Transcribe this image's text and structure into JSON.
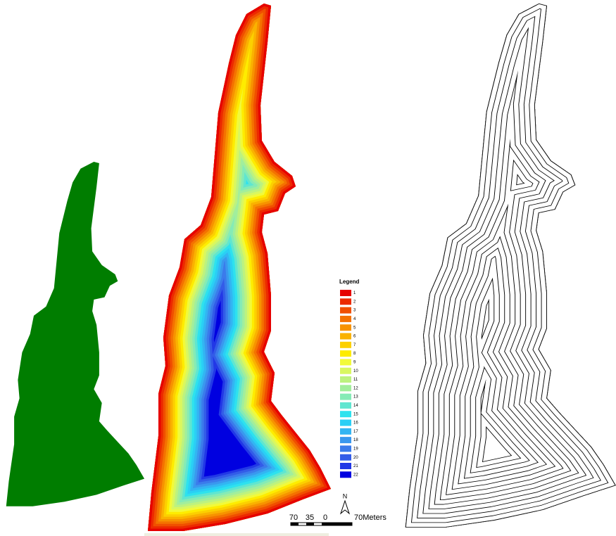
{
  "legend": {
    "title": "Legend",
    "items": [
      {
        "label": "1",
        "color": "#e60000"
      },
      {
        "label": "2",
        "color": "#ec2a00"
      },
      {
        "label": "3",
        "color": "#f04f00"
      },
      {
        "label": "4",
        "color": "#f47200"
      },
      {
        "label": "5",
        "color": "#f79300"
      },
      {
        "label": "6",
        "color": "#fab200"
      },
      {
        "label": "7",
        "color": "#fcd000"
      },
      {
        "label": "8",
        "color": "#feec00"
      },
      {
        "label": "9",
        "color": "#f2fa3a"
      },
      {
        "label": "10",
        "color": "#d9f760"
      },
      {
        "label": "11",
        "color": "#bdf27f"
      },
      {
        "label": "12",
        "color": "#a2ee9c"
      },
      {
        "label": "13",
        "color": "#85ebb6"
      },
      {
        "label": "14",
        "color": "#60e6d0"
      },
      {
        "label": "15",
        "color": "#2ee2ee"
      },
      {
        "label": "16",
        "color": "#2acff5"
      },
      {
        "label": "17",
        "color": "#33b5f2"
      },
      {
        "label": "18",
        "color": "#3a98ee"
      },
      {
        "label": "19",
        "color": "#3b7beb"
      },
      {
        "label": "20",
        "color": "#335ce8"
      },
      {
        "label": "21",
        "color": "#2238e6"
      },
      {
        "label": "22",
        "color": "#0000e0"
      }
    ]
  },
  "north_arrow": "N",
  "scale_bar": {
    "labels": [
      "70",
      "35",
      "0",
      "70Meters"
    ]
  }
}
